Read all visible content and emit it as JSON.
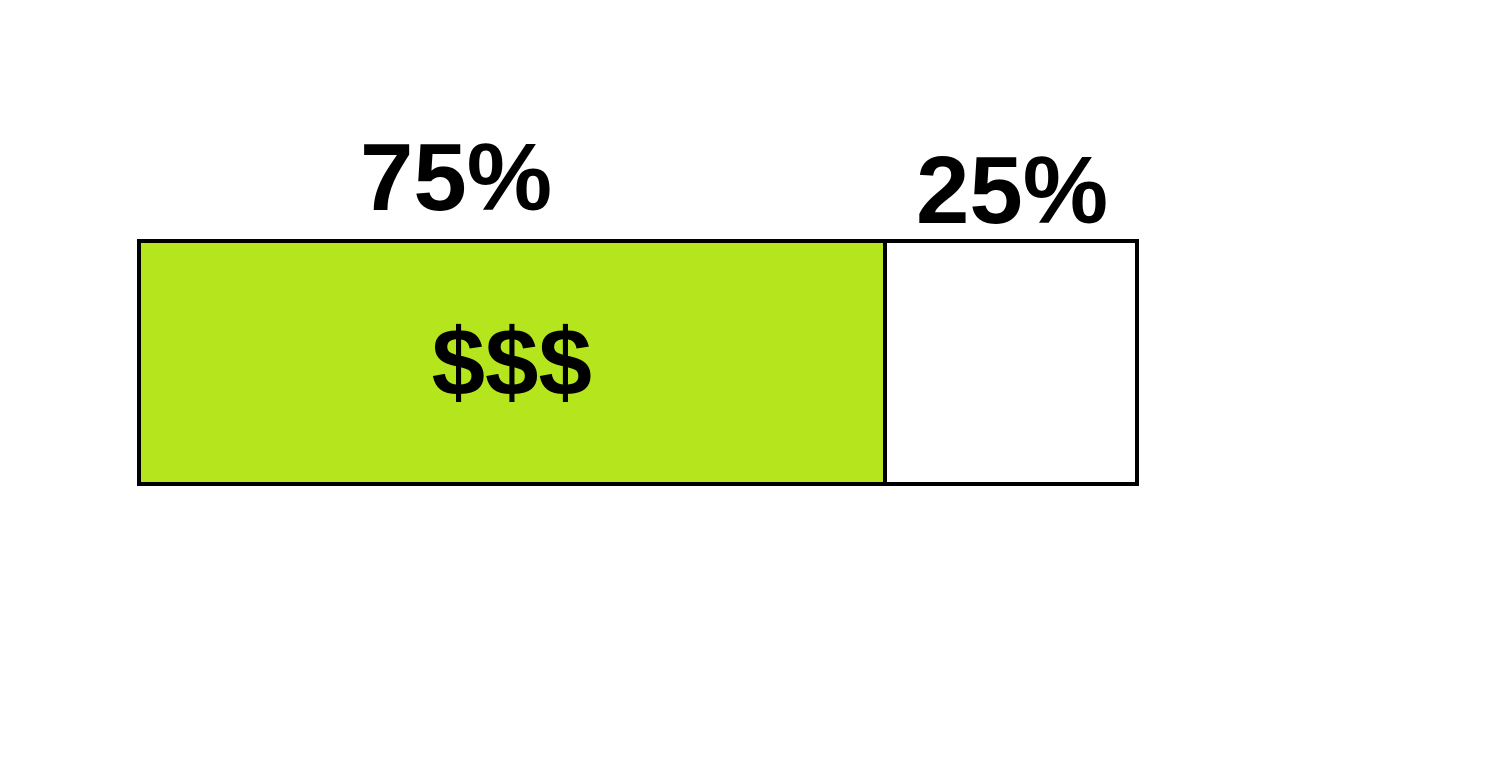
{
  "segments": [
    {
      "label": "75%",
      "value": 75,
      "content": "$$$",
      "color": "#b5e61d"
    },
    {
      "label": "25%",
      "value": 25,
      "content": "",
      "color": "#ffffff"
    }
  ],
  "border_color": "#000000"
}
